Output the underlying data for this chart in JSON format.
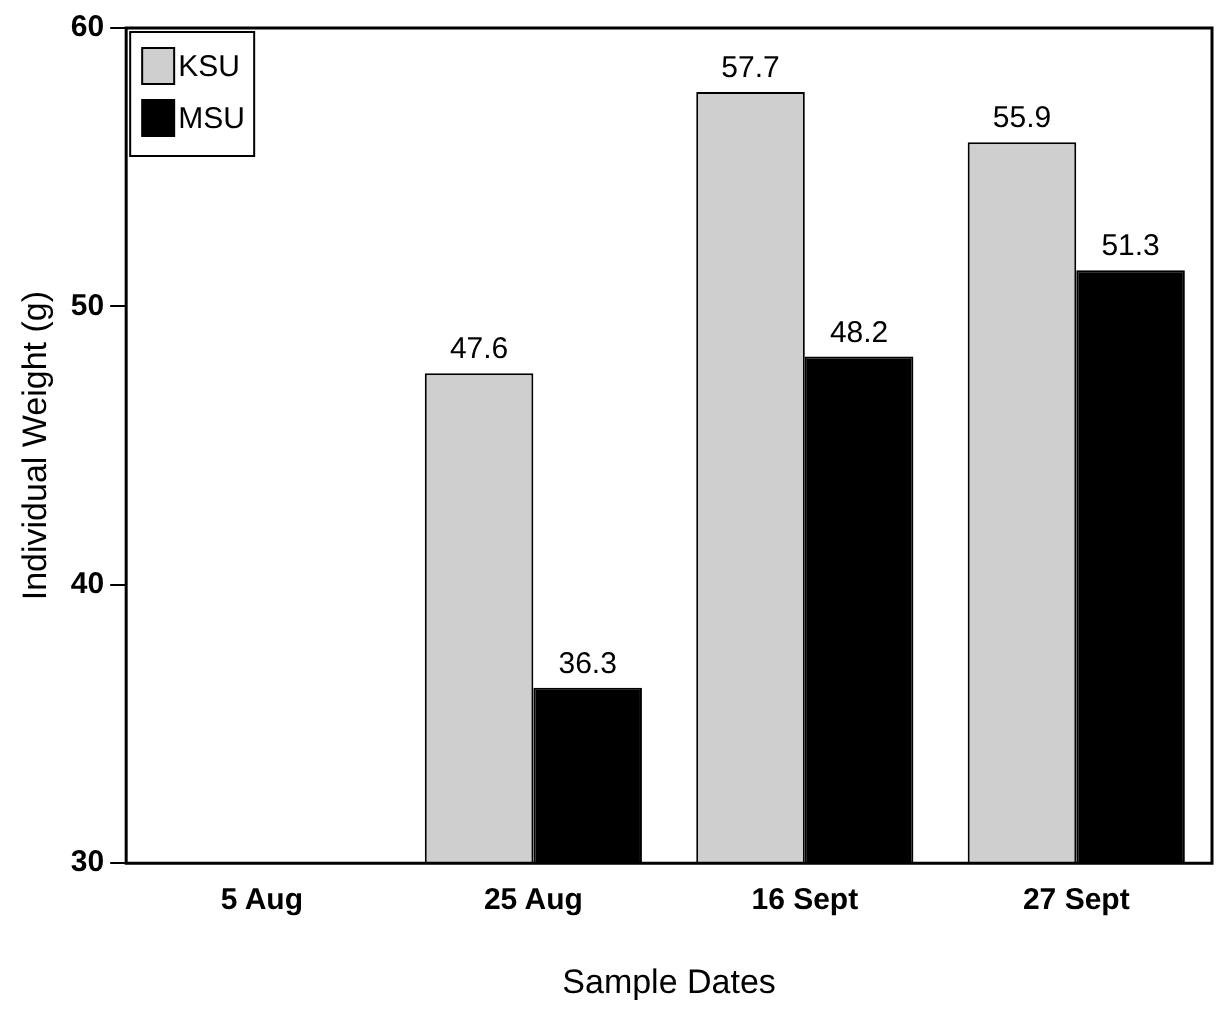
{
  "chart_data": {
    "type": "bar",
    "xlabel": "Sample Dates",
    "ylabel": "Individual Weight (g)",
    "categories": [
      "5 Aug",
      "25 Aug",
      "16 Sept",
      "27 Sept"
    ],
    "series": [
      {
        "name": "KSU",
        "color": "#cfcfcf",
        "values": [
          null,
          47.6,
          57.7,
          55.9
        ]
      },
      {
        "name": "MSU",
        "color": "#000000",
        "values": [
          null,
          36.3,
          48.2,
          51.3
        ]
      }
    ],
    "ylim": [
      30,
      60
    ],
    "yticks": [
      30,
      40,
      50,
      60
    ],
    "grid": false,
    "legend": "top left",
    "data_labels": true
  }
}
